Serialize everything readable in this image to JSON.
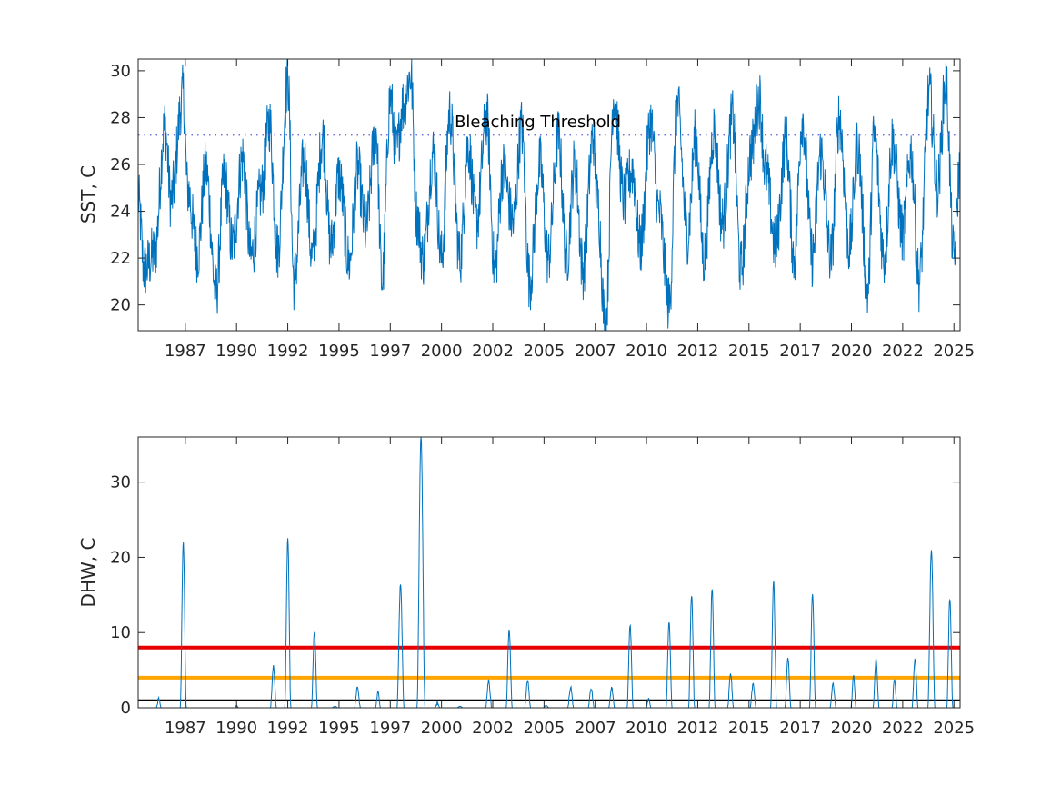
{
  "chart_data": [
    {
      "type": "line",
      "ylabel": "SST, C",
      "xlabel": "",
      "x_tick_labels": [
        "1987",
        "1990",
        "1992",
        "1995",
        "1997",
        "2000",
        "2002",
        "2005",
        "2007",
        "2010",
        "2012",
        "2015",
        "2017",
        "2020",
        "2022",
        "2025"
      ],
      "x_ticks_years": [
        1987.0,
        1989.5,
        1992.0,
        1994.5,
        1997.0,
        1999.5,
        2002.0,
        2004.5,
        2007.0,
        2009.5,
        2012.0,
        2014.5,
        2017.0,
        2019.5,
        2022.0,
        2024.5
      ],
      "xlim": [
        1984.7,
        2024.8
      ],
      "ylim": [
        18.9,
        30.5
      ],
      "y_ticks": [
        20,
        22,
        24,
        26,
        28,
        30
      ],
      "grid": false,
      "series": [
        {
          "color": "#0072bd",
          "x": [
            1984.7,
            1985.0,
            1985.5,
            1986.0,
            1986.3,
            1986.9,
            1987.1,
            1987.6,
            1988.0,
            1988.5,
            1988.9,
            1989.3,
            1989.8,
            1990.2,
            1990.7,
            1991.1,
            1991.5,
            1992.0,
            1992.3,
            1992.8,
            1993.2,
            1993.7,
            1994.1,
            1994.5,
            1995.0,
            1995.4,
            1995.8,
            1996.3,
            1996.6,
            1997.0,
            1997.3,
            1997.6,
            1998.0,
            1998.3,
            1998.6,
            1999.1,
            1999.5,
            1999.9,
            2000.4,
            2000.8,
            2001.2,
            2001.7,
            2002.1,
            2002.5,
            2003.0,
            2003.4,
            2003.8,
            2004.3,
            2004.7,
            2005.2,
            2005.6,
            2006.0,
            2006.4,
            2006.9,
            2007.1,
            2007.5,
            2007.9,
            2008.4,
            2008.8,
            2009.2,
            2009.7,
            2010.1,
            2010.6,
            2011.0,
            2011.5,
            2011.9,
            2012.3,
            2012.8,
            2013.2,
            2013.7,
            2014.1,
            2014.6,
            2015.0,
            2015.3,
            2015.8,
            2016.3,
            2016.7,
            2017.1,
            2017.6,
            2018.0,
            2018.5,
            2018.9,
            2019.4,
            2019.8,
            2020.3,
            2020.6,
            2021.1,
            2021.5,
            2022.0,
            2022.4,
            2022.8,
            2023.3,
            2023.7,
            2024.1,
            2024.5,
            2024.8
          ],
          "values": [
            24.5,
            21.5,
            22.2,
            27.6,
            24.5,
            29.0,
            25.0,
            22.2,
            25.8,
            20.5,
            25.5,
            22.5,
            26.3,
            22.0,
            24.8,
            27.8,
            22.3,
            29.6,
            21.0,
            26.2,
            22.0,
            27.2,
            22.5,
            25.5,
            21.8,
            25.8,
            23.2,
            27.5,
            21.0,
            28.8,
            26.5,
            28.5,
            29.8,
            23.8,
            22.0,
            26.5,
            22.0,
            28.2,
            22.0,
            26.8,
            23.5,
            28.0,
            21.5,
            25.8,
            23.5,
            27.6,
            21.0,
            26.0,
            22.0,
            27.2,
            22.0,
            26.0,
            21.5,
            27.2,
            24.5,
            19.0,
            28.9,
            24.5,
            25.8,
            22.5,
            27.8,
            24.0,
            20.0,
            28.5,
            23.0,
            27.2,
            22.0,
            27.5,
            23.5,
            28.0,
            21.5,
            26.5,
            28.8,
            25.8,
            22.5,
            27.0,
            22.0,
            28.0,
            22.0,
            26.5,
            22.0,
            28.0,
            22.5,
            26.8,
            20.5,
            27.2,
            22.0,
            27.0,
            23.0,
            26.5,
            21.0,
            29.0,
            25.0,
            29.5,
            22.0,
            26.0
          ]
        }
      ],
      "reference_line": {
        "y": 27.25,
        "color": "#5b5bd6",
        "style": "dotted"
      },
      "annotation": {
        "text": "Bleaching Threshold",
        "x": 2004.2,
        "y": 27.6
      }
    },
    {
      "type": "line",
      "ylabel": "DHW, C",
      "xlabel": "",
      "x_tick_labels": [
        "1987",
        "1990",
        "1992",
        "1995",
        "1997",
        "2000",
        "2002",
        "2005",
        "2007",
        "2010",
        "2012",
        "2015",
        "2017",
        "2020",
        "2022",
        "2025"
      ],
      "x_ticks_years": [
        1987.0,
        1989.5,
        1992.0,
        1994.5,
        1997.0,
        1999.5,
        2002.0,
        2004.5,
        2007.0,
        2009.5,
        2012.0,
        2014.5,
        2017.0,
        2019.5,
        2022.0,
        2024.5
      ],
      "xlim": [
        1984.7,
        2024.8
      ],
      "ylim": [
        0,
        36
      ],
      "y_ticks": [
        0,
        10,
        20,
        30
      ],
      "grid": false,
      "series": [
        {
          "color": "#0072bd",
          "peaks": [
            {
              "center": 1985.7,
              "height": 1.2,
              "width": 0.25
            },
            {
              "center": 1986.9,
              "height": 22.0,
              "width": 0.3
            },
            {
              "center": 1989.5,
              "height": 0.3,
              "width": 0.2
            },
            {
              "center": 1991.3,
              "height": 5.5,
              "width": 0.3
            },
            {
              "center": 1992.0,
              "height": 22.5,
              "width": 0.3
            },
            {
              "center": 1993.3,
              "height": 10.2,
              "width": 0.3
            },
            {
              "center": 1994.3,
              "height": 0.2,
              "width": 0.3
            },
            {
              "center": 1995.4,
              "height": 2.7,
              "width": 0.3
            },
            {
              "center": 1996.4,
              "height": 2.1,
              "width": 0.25
            },
            {
              "center": 1997.5,
              "height": 16.3,
              "width": 0.35
            },
            {
              "center": 1998.5,
              "height": 36.0,
              "width": 0.4
            },
            {
              "center": 1999.3,
              "height": 0.6,
              "width": 0.25
            },
            {
              "center": 2000.4,
              "height": 0.2,
              "width": 0.3
            },
            {
              "center": 2001.8,
              "height": 3.6,
              "width": 0.3
            },
            {
              "center": 2002.8,
              "height": 10.4,
              "width": 0.3
            },
            {
              "center": 2003.7,
              "height": 3.6,
              "width": 0.3
            },
            {
              "center": 2004.6,
              "height": 0.3,
              "width": 0.3
            },
            {
              "center": 2005.8,
              "height": 2.7,
              "width": 0.3
            },
            {
              "center": 2006.8,
              "height": 2.5,
              "width": 0.3
            },
            {
              "center": 2007.8,
              "height": 2.6,
              "width": 0.3
            },
            {
              "center": 2008.7,
              "height": 11.0,
              "width": 0.3
            },
            {
              "center": 2009.6,
              "height": 1.1,
              "width": 0.25
            },
            {
              "center": 2010.6,
              "height": 11.4,
              "width": 0.3
            },
            {
              "center": 2011.7,
              "height": 15.0,
              "width": 0.3
            },
            {
              "center": 2012.7,
              "height": 15.8,
              "width": 0.3
            },
            {
              "center": 2013.6,
              "height": 4.6,
              "width": 0.3
            },
            {
              "center": 2014.7,
              "height": 3.1,
              "width": 0.3
            },
            {
              "center": 2015.7,
              "height": 16.8,
              "width": 0.3
            },
            {
              "center": 2016.4,
              "height": 6.7,
              "width": 0.3
            },
            {
              "center": 2017.6,
              "height": 15.2,
              "width": 0.3
            },
            {
              "center": 2018.6,
              "height": 3.1,
              "width": 0.3
            },
            {
              "center": 2019.6,
              "height": 4.3,
              "width": 0.25
            },
            {
              "center": 2020.7,
              "height": 6.4,
              "width": 0.3
            },
            {
              "center": 2021.6,
              "height": 3.8,
              "width": 0.25
            },
            {
              "center": 2022.6,
              "height": 6.4,
              "width": 0.3
            },
            {
              "center": 2023.4,
              "height": 21.0,
              "width": 0.35
            },
            {
              "center": 2024.3,
              "height": 14.5,
              "width": 0.3
            }
          ]
        }
      ],
      "reference_lines": [
        {
          "y": 8,
          "color": "#e60000"
        },
        {
          "y": 4,
          "color": "#ffa500"
        },
        {
          "y": 1,
          "color": "#000000"
        }
      ]
    }
  ]
}
